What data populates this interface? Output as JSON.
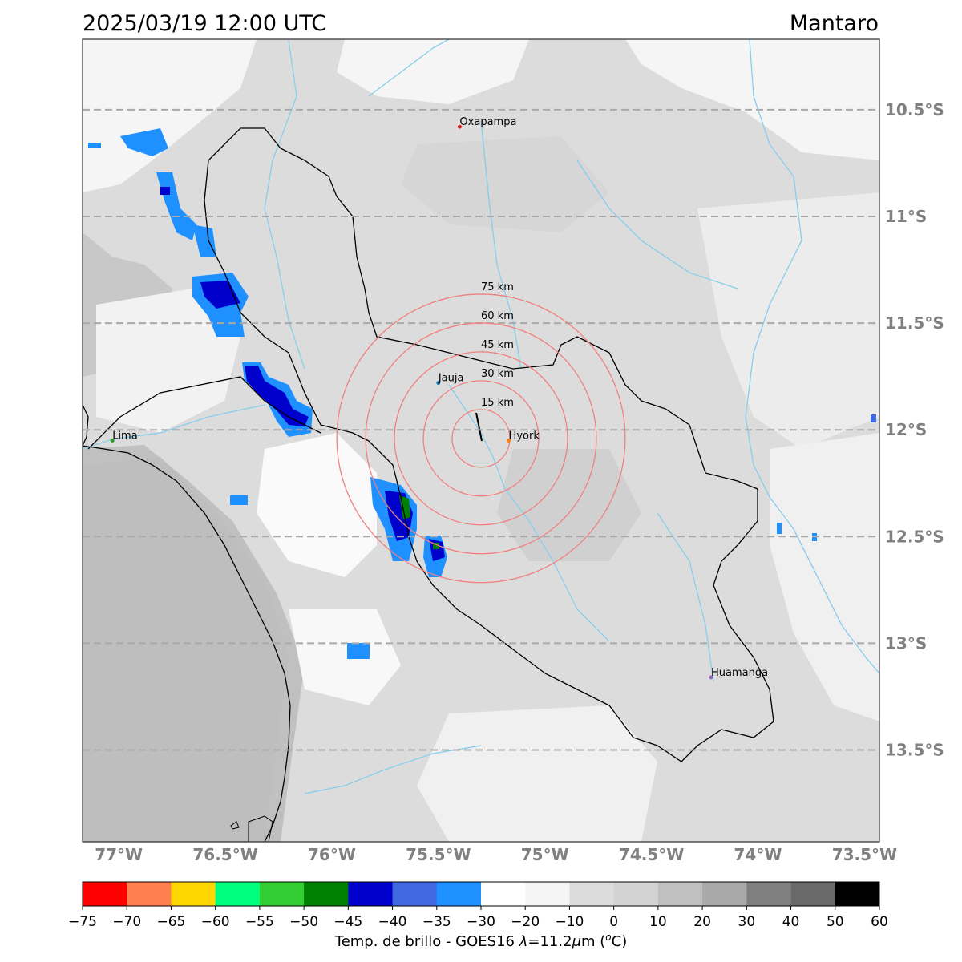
{
  "title": {
    "datetime": "2025/03/19 12:00 UTC",
    "region": "Mantaro"
  },
  "map": {
    "lon_range": [
      -77.17,
      -73.43
    ],
    "lat_range": [
      -13.93,
      -10.17
    ],
    "lat_gridlines": [
      {
        "lat": -10.5,
        "label": "10.5°S"
      },
      {
        "lat": -11.0,
        "label": "11°S"
      },
      {
        "lat": -11.5,
        "label": "11.5°S"
      },
      {
        "lat": -12.0,
        "label": "12°S"
      },
      {
        "lat": -12.5,
        "label": "12.5°S"
      },
      {
        "lat": -13.0,
        "label": "13°S"
      },
      {
        "lat": -13.5,
        "label": "13.5°S"
      }
    ],
    "lon_labels": [
      {
        "lon": -77.0,
        "label": "77°W"
      },
      {
        "lon": -76.5,
        "label": "76.5°W"
      },
      {
        "lon": -76.0,
        "label": "76°W"
      },
      {
        "lon": -75.5,
        "label": "75.5°W"
      },
      {
        "lon": -75.0,
        "label": "75°W"
      },
      {
        "lon": -74.5,
        "label": "74.5°W"
      },
      {
        "lon": -74.0,
        "label": "74°W"
      },
      {
        "lon": -73.5,
        "label": "73.5°W"
      }
    ],
    "cities": [
      {
        "name": "Oxapampa",
        "lon": -75.4,
        "lat": -10.58,
        "color": "#d62728"
      },
      {
        "name": "Jauja",
        "lon": -75.5,
        "lat": -11.78,
        "color": "#1f77b4"
      },
      {
        "name": "Hyork",
        "lon": -75.17,
        "lat": -12.05,
        "color": "#ff7f0e"
      },
      {
        "name": "Lima",
        "lon": -77.03,
        "lat": -12.05,
        "color": "#2ca02c"
      },
      {
        "name": "Huamanga",
        "lon": -74.22,
        "lat": -13.16,
        "color": "#9467bd"
      }
    ],
    "radar_center": {
      "lon": -75.3,
      "lat": -12.04
    },
    "range_rings": [
      {
        "km": 15,
        "label": "15 km"
      },
      {
        "km": 30,
        "label": "30 km"
      },
      {
        "km": 45,
        "label": "45 km"
      },
      {
        "km": 60,
        "label": "60 km"
      },
      {
        "km": 75,
        "label": "75 km"
      }
    ],
    "colors": {
      "ring": "#f08080",
      "river": "#87ceeb",
      "grid": "#a9a9a9",
      "border": "#000000"
    }
  },
  "colorbar": {
    "label": "Temp. de brillo - GOES16 λ=11.2μm (ºC)",
    "label_parts": {
      "prefix": "Temp. de brillo - GOES16 ",
      "lambda": "λ",
      "equals": "=11.2",
      "mu": "μ",
      "unit_m": "m (",
      "deg": "o",
      "c_close": "C)"
    },
    "bins": [
      -75,
      -70,
      -65,
      -60,
      -55,
      -50,
      -45,
      -40,
      -35,
      -30,
      -20,
      -10,
      0,
      10,
      20,
      30,
      40,
      50,
      60
    ],
    "tick_labels": [
      "−75",
      "−70",
      "−65",
      "−60",
      "−55",
      "−50",
      "−45",
      "−40",
      "−35",
      "−30",
      "−20",
      "−10",
      "0",
      "10",
      "20",
      "30",
      "40",
      "50",
      "60"
    ],
    "colors": [
      "#ff0000",
      "#ff7f50",
      "#ffd700",
      "#00ff7f",
      "#32cd32",
      "#008000",
      "#0000cd",
      "#4169e1",
      "#1e90ff",
      "#ffffff",
      "#f5f5f5",
      "#dcdcdc",
      "#d3d3d3",
      "#c0c0c0",
      "#a9a9a9",
      "#808080",
      "#696969",
      "#000000"
    ]
  }
}
